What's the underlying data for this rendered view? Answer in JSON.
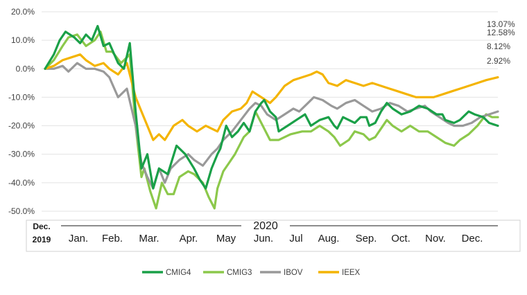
{
  "chart_data": {
    "type": "line",
    "x_start_label": [
      "Dec.",
      "2019"
    ],
    "year_label": "2020",
    "months": [
      "Jan.",
      "Feb.",
      "Mar.",
      "Apr.",
      "May",
      "Jun.",
      "Jul",
      "Aug.",
      "Sep.",
      "Oct.",
      "Nov.",
      "Dec."
    ],
    "y_ticks": [
      "20.0%",
      "10.0%",
      "0.0%",
      "-10.0%",
      "-20.0%",
      "-30.0%",
      "-40.0%",
      "-50.0%"
    ],
    "ylim": [
      -50,
      20
    ],
    "grid": true,
    "legend_position": "bottom",
    "end_labels": [
      "13.07%",
      "12.58%",
      "8.12%",
      "2.92%"
    ],
    "series": [
      {
        "name": "CMIG4",
        "color": "#1aa048",
        "points": [
          [
            0,
            0
          ],
          [
            0.15,
            5
          ],
          [
            0.25,
            10
          ],
          [
            0.35,
            13
          ],
          [
            0.5,
            11
          ],
          [
            0.6,
            9
          ],
          [
            0.7,
            12
          ],
          [
            0.8,
            10
          ],
          [
            0.9,
            15
          ],
          [
            1.0,
            8
          ],
          [
            1.1,
            9
          ],
          [
            1.25,
            2
          ],
          [
            1.35,
            0
          ],
          [
            1.45,
            9
          ],
          [
            1.55,
            -15
          ],
          [
            1.65,
            -35
          ],
          [
            1.75,
            -30
          ],
          [
            1.85,
            -42
          ],
          [
            1.95,
            -35
          ],
          [
            2.1,
            -37
          ],
          [
            2.25,
            -27
          ],
          [
            2.4,
            -30
          ],
          [
            2.55,
            -35
          ],
          [
            2.65,
            -39
          ],
          [
            2.75,
            -42
          ],
          [
            2.85,
            -35
          ],
          [
            2.95,
            -30
          ],
          [
            3.0,
            -28
          ],
          [
            3.1,
            -20
          ],
          [
            3.2,
            -24
          ],
          [
            3.3,
            -22
          ],
          [
            3.4,
            -19
          ],
          [
            3.5,
            -22
          ],
          [
            3.6,
            -15
          ],
          [
            3.7,
            -12
          ],
          [
            3.75,
            -11
          ],
          [
            3.85,
            -15
          ],
          [
            3.95,
            -17
          ],
          [
            4.0,
            -22
          ],
          [
            4.15,
            -20
          ],
          [
            4.3,
            -18
          ],
          [
            4.45,
            -16
          ],
          [
            4.55,
            -20
          ],
          [
            4.7,
            -18
          ],
          [
            4.85,
            -17
          ],
          [
            4.95,
            -20
          ],
          [
            5.0,
            -21
          ],
          [
            5.1,
            -17
          ],
          [
            5.2,
            -18
          ],
          [
            5.3,
            -19
          ],
          [
            5.4,
            -17
          ],
          [
            5.5,
            -17
          ],
          [
            5.55,
            -20
          ],
          [
            5.65,
            -19
          ],
          [
            5.75,
            -15
          ],
          [
            5.85,
            -12
          ],
          [
            5.95,
            -14
          ],
          [
            6.1,
            -16
          ],
          [
            6.25,
            -15
          ],
          [
            6.4,
            -13
          ],
          [
            6.55,
            -14
          ],
          [
            6.7,
            -16
          ],
          [
            6.8,
            -16
          ],
          [
            6.85,
            -18
          ],
          [
            7.0,
            -19
          ],
          [
            7.1,
            -18
          ],
          [
            7.25,
            -15
          ],
          [
            7.35,
            -16
          ],
          [
            7.5,
            -17
          ],
          [
            7.6,
            -19
          ],
          [
            7.75,
            -20
          ]
        ]
      },
      {
        "name": "CMIG3",
        "color": "#8cc84b",
        "points": [
          [
            0,
            0
          ],
          [
            0.15,
            3
          ],
          [
            0.3,
            8
          ],
          [
            0.4,
            11
          ],
          [
            0.55,
            12
          ],
          [
            0.7,
            8
          ],
          [
            0.85,
            10
          ],
          [
            0.95,
            13
          ],
          [
            1.05,
            6
          ],
          [
            1.15,
            6
          ],
          [
            1.3,
            2
          ],
          [
            1.45,
            5
          ],
          [
            1.55,
            -20
          ],
          [
            1.65,
            -38
          ],
          [
            1.7,
            -35
          ],
          [
            1.8,
            -43
          ],
          [
            1.9,
            -49
          ],
          [
            2.0,
            -40
          ],
          [
            2.1,
            -44
          ],
          [
            2.2,
            -44
          ],
          [
            2.3,
            -38
          ],
          [
            2.45,
            -36
          ],
          [
            2.55,
            -37
          ],
          [
            2.7,
            -40
          ],
          [
            2.8,
            -45
          ],
          [
            2.9,
            -49
          ],
          [
            2.95,
            -42
          ],
          [
            3.05,
            -36
          ],
          [
            3.15,
            -33
          ],
          [
            3.25,
            -30
          ],
          [
            3.4,
            -24
          ],
          [
            3.5,
            -22
          ],
          [
            3.6,
            -15
          ],
          [
            3.7,
            -19
          ],
          [
            3.85,
            -25
          ],
          [
            4.0,
            -25
          ],
          [
            4.2,
            -23
          ],
          [
            4.4,
            -22
          ],
          [
            4.55,
            -22
          ],
          [
            4.7,
            -20
          ],
          [
            4.85,
            -22
          ],
          [
            4.95,
            -24
          ],
          [
            5.05,
            -27
          ],
          [
            5.2,
            -25
          ],
          [
            5.3,
            -22
          ],
          [
            5.45,
            -23
          ],
          [
            5.55,
            -25
          ],
          [
            5.65,
            -24
          ],
          [
            5.75,
            -21
          ],
          [
            5.85,
            -18
          ],
          [
            5.95,
            -20
          ],
          [
            6.1,
            -22
          ],
          [
            6.25,
            -20
          ],
          [
            6.4,
            -22
          ],
          [
            6.55,
            -22
          ],
          [
            6.7,
            -24
          ],
          [
            6.85,
            -26
          ],
          [
            7.0,
            -27
          ],
          [
            7.1,
            -25
          ],
          [
            7.25,
            -23
          ],
          [
            7.4,
            -20
          ],
          [
            7.55,
            -16
          ],
          [
            7.65,
            -17
          ],
          [
            7.75,
            -17
          ]
        ]
      },
      {
        "name": "IBOV",
        "color": "#999999",
        "points": [
          [
            0,
            0
          ],
          [
            0.15,
            0
          ],
          [
            0.3,
            1
          ],
          [
            0.4,
            -1
          ],
          [
            0.55,
            2
          ],
          [
            0.7,
            0
          ],
          [
            0.85,
            0
          ],
          [
            1.0,
            -1
          ],
          [
            1.1,
            -3
          ],
          [
            1.25,
            -10
          ],
          [
            1.4,
            -7
          ],
          [
            1.55,
            -20
          ],
          [
            1.65,
            -33
          ],
          [
            1.75,
            -38
          ],
          [
            1.85,
            -42
          ],
          [
            1.95,
            -35
          ],
          [
            2.05,
            -40
          ],
          [
            2.15,
            -35
          ],
          [
            2.3,
            -32
          ],
          [
            2.45,
            -30
          ],
          [
            2.55,
            -32
          ],
          [
            2.7,
            -34
          ],
          [
            2.85,
            -30
          ],
          [
            2.95,
            -28
          ],
          [
            3.05,
            -25
          ],
          [
            3.2,
            -22
          ],
          [
            3.35,
            -18
          ],
          [
            3.5,
            -14
          ],
          [
            3.6,
            -12
          ],
          [
            3.7,
            -13
          ],
          [
            3.8,
            -16
          ],
          [
            3.95,
            -18
          ],
          [
            4.1,
            -16
          ],
          [
            4.25,
            -14
          ],
          [
            4.35,
            -15
          ],
          [
            4.5,
            -12
          ],
          [
            4.6,
            -10
          ],
          [
            4.75,
            -11
          ],
          [
            4.9,
            -13
          ],
          [
            5.0,
            -14
          ],
          [
            5.15,
            -12
          ],
          [
            5.3,
            -11
          ],
          [
            5.45,
            -13
          ],
          [
            5.6,
            -15
          ],
          [
            5.75,
            -14
          ],
          [
            5.9,
            -12
          ],
          [
            6.05,
            -13
          ],
          [
            6.2,
            -15
          ],
          [
            6.35,
            -14
          ],
          [
            6.5,
            -13
          ],
          [
            6.6,
            -15
          ],
          [
            6.75,
            -17
          ],
          [
            6.9,
            -19
          ],
          [
            7.0,
            -20
          ],
          [
            7.15,
            -20
          ],
          [
            7.3,
            -19
          ],
          [
            7.45,
            -17
          ],
          [
            7.6,
            -16
          ],
          [
            7.75,
            -15
          ]
        ]
      },
      {
        "name": "IEEX",
        "color": "#f4b400",
        "points": [
          [
            0,
            0
          ],
          [
            0.15,
            1
          ],
          [
            0.3,
            3
          ],
          [
            0.45,
            4
          ],
          [
            0.6,
            5
          ],
          [
            0.7,
            3
          ],
          [
            0.85,
            1
          ],
          [
            1.0,
            2
          ],
          [
            1.1,
            0
          ],
          [
            1.25,
            -2
          ],
          [
            1.4,
            2
          ],
          [
            1.55,
            -10
          ],
          [
            1.65,
            -15
          ],
          [
            1.75,
            -20
          ],
          [
            1.85,
            -25
          ],
          [
            1.95,
            -23
          ],
          [
            2.05,
            -25
          ],
          [
            2.2,
            -20
          ],
          [
            2.35,
            -18
          ],
          [
            2.45,
            -20
          ],
          [
            2.6,
            -22
          ],
          [
            2.75,
            -20
          ],
          [
            2.85,
            -21
          ],
          [
            2.95,
            -22
          ],
          [
            3.05,
            -18
          ],
          [
            3.2,
            -15
          ],
          [
            3.35,
            -14
          ],
          [
            3.45,
            -12
          ],
          [
            3.55,
            -8
          ],
          [
            3.7,
            -10
          ],
          [
            3.85,
            -12
          ],
          [
            3.95,
            -10
          ],
          [
            4.1,
            -6
          ],
          [
            4.25,
            -4
          ],
          [
            4.4,
            -3
          ],
          [
            4.55,
            -2
          ],
          [
            4.65,
            -1
          ],
          [
            4.75,
            -2
          ],
          [
            4.85,
            -5
          ],
          [
            5.0,
            -6
          ],
          [
            5.15,
            -4
          ],
          [
            5.3,
            -5
          ],
          [
            5.45,
            -6
          ],
          [
            5.6,
            -5
          ],
          [
            5.75,
            -6
          ],
          [
            5.9,
            -7
          ],
          [
            6.05,
            -8
          ],
          [
            6.2,
            -9
          ],
          [
            6.35,
            -10
          ],
          [
            6.5,
            -10
          ],
          [
            6.65,
            -10
          ],
          [
            6.8,
            -9
          ],
          [
            6.95,
            -8
          ],
          [
            7.1,
            -7
          ],
          [
            7.25,
            -6
          ],
          [
            7.4,
            -5
          ],
          [
            7.55,
            -4
          ],
          [
            7.75,
            -3
          ]
        ]
      }
    ]
  }
}
